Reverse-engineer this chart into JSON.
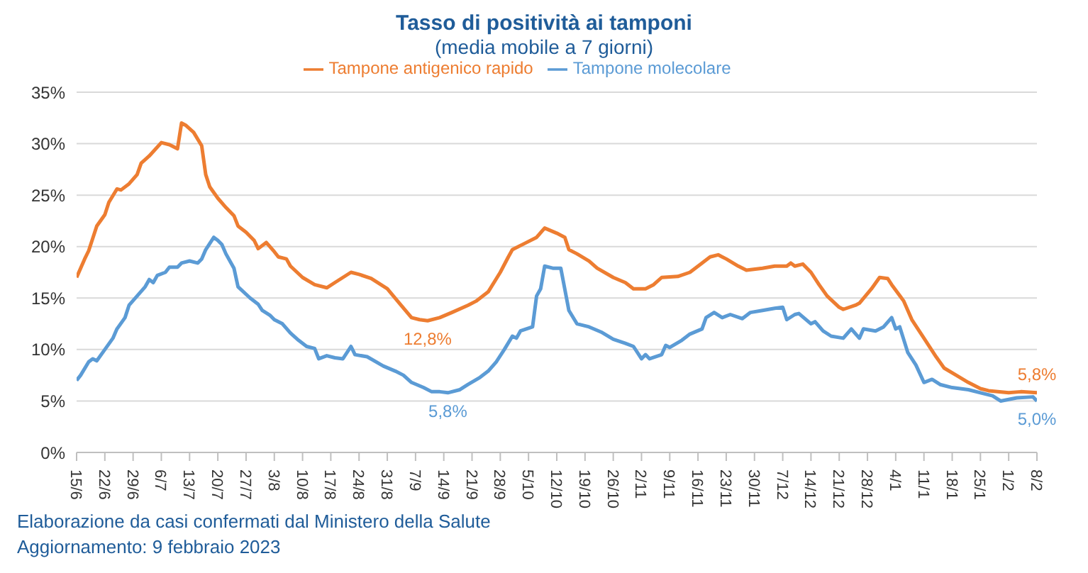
{
  "chart_data": {
    "type": "line",
    "title": "Tasso di positività ai tamponi",
    "subtitle": "(media mobile a 7 giorni)",
    "annotations": [
      "Elaborazione da casi confermati dal Ministero della Salute",
      "Aggiornamento: 9 febbraio 2023"
    ],
    "xlim": [
      "2022-06-15",
      "2023-02-08"
    ],
    "xticks": [
      {
        "value": "2022-06-15",
        "label": "15/6"
      },
      {
        "value": "2022-06-22",
        "label": "22/6"
      },
      {
        "value": "2022-06-29",
        "label": "29/6"
      },
      {
        "value": "2022-07-06",
        "label": "6/7"
      },
      {
        "value": "2022-07-13",
        "label": "13/7"
      },
      {
        "value": "2022-07-20",
        "label": "20/7"
      },
      {
        "value": "2022-07-27",
        "label": "27/7"
      },
      {
        "value": "2022-08-03",
        "label": "3/8"
      },
      {
        "value": "2022-08-10",
        "label": "10/8"
      },
      {
        "value": "2022-08-17",
        "label": "17/8"
      },
      {
        "value": "2022-08-24",
        "label": "24/8"
      },
      {
        "value": "2022-08-31",
        "label": "31/8"
      },
      {
        "value": "2022-09-07",
        "label": "7/9"
      },
      {
        "value": "2022-09-14",
        "label": "14/9"
      },
      {
        "value": "2022-09-21",
        "label": "21/9"
      },
      {
        "value": "2022-09-28",
        "label": "28/9"
      },
      {
        "value": "2022-10-05",
        "label": "5/10"
      },
      {
        "value": "2022-10-12",
        "label": "12/10"
      },
      {
        "value": "2022-10-19",
        "label": "19/10"
      },
      {
        "value": "2022-10-26",
        "label": "26/10"
      },
      {
        "value": "2022-11-02",
        "label": "2/11"
      },
      {
        "value": "2022-11-09",
        "label": "9/11"
      },
      {
        "value": "2022-11-16",
        "label": "16/11"
      },
      {
        "value": "2022-11-23",
        "label": "23/11"
      },
      {
        "value": "2022-11-30",
        "label": "30/11"
      },
      {
        "value": "2022-12-07",
        "label": "7/12"
      },
      {
        "value": "2022-12-14",
        "label": "14/12"
      },
      {
        "value": "2022-12-21",
        "label": "21/12"
      },
      {
        "value": "2022-12-28",
        "label": "28/12"
      },
      {
        "value": "2023-01-04",
        "label": "4/1"
      },
      {
        "value": "2023-01-11",
        "label": "11/1"
      },
      {
        "value": "2023-01-18",
        "label": "18/1"
      },
      {
        "value": "2023-01-25",
        "label": "25/1"
      },
      {
        "value": "2023-02-01",
        "label": "1/2"
      },
      {
        "value": "2023-02-08",
        "label": "8/2"
      }
    ],
    "ylim": [
      0,
      35
    ],
    "yticks": [
      {
        "value": 0,
        "label": "0%"
      },
      {
        "value": 5,
        "label": "5%"
      },
      {
        "value": 10,
        "label": "10%"
      },
      {
        "value": 15,
        "label": "15%"
      },
      {
        "value": 20,
        "label": "20%"
      },
      {
        "value": 25,
        "label": "25%"
      },
      {
        "value": 30,
        "label": "30%"
      },
      {
        "value": 35,
        "label": "35%"
      }
    ],
    "grid": "y",
    "legend": "top",
    "series": [
      {
        "name": "Tampone molecolare",
        "color": "#5b9bd5",
        "x": [
          "2022-06-15",
          "2022-06-16",
          "2022-06-18",
          "2022-06-19",
          "2022-06-20",
          "2022-06-22",
          "2022-06-24",
          "2022-06-25",
          "2022-06-27",
          "2022-06-28",
          "2022-06-30",
          "2022-07-02",
          "2022-07-03",
          "2022-07-04",
          "2022-07-05",
          "2022-07-07",
          "2022-07-08",
          "2022-07-10",
          "2022-07-11",
          "2022-07-13",
          "2022-07-15",
          "2022-07-16",
          "2022-07-17",
          "2022-07-19",
          "2022-07-20",
          "2022-07-21",
          "2022-07-22",
          "2022-07-24",
          "2022-07-25",
          "2022-07-28",
          "2022-07-30",
          "2022-07-31",
          "2022-08-02",
          "2022-08-03",
          "2022-08-05",
          "2022-08-07",
          "2022-08-09",
          "2022-08-11",
          "2022-08-13",
          "2022-08-14",
          "2022-08-16",
          "2022-08-18",
          "2022-08-20",
          "2022-08-22",
          "2022-08-23",
          "2022-08-26",
          "2022-08-30",
          "2022-09-02",
          "2022-09-04",
          "2022-09-06",
          "2022-09-09",
          "2022-09-11",
          "2022-09-13",
          "2022-09-15",
          "2022-09-18",
          "2022-09-20",
          "2022-09-23",
          "2022-09-25",
          "2022-09-27",
          "2022-09-29",
          "2022-10-01",
          "2022-10-02",
          "2022-10-03",
          "2022-10-06",
          "2022-10-07",
          "2022-10-08",
          "2022-10-09",
          "2022-10-11",
          "2022-10-13",
          "2022-10-15",
          "2022-10-17",
          "2022-10-20",
          "2022-10-23",
          "2022-10-26",
          "2022-10-29",
          "2022-10-31",
          "2022-11-02",
          "2022-11-03",
          "2022-11-04",
          "2022-11-07",
          "2022-11-08",
          "2022-11-09",
          "2022-11-12",
          "2022-11-14",
          "2022-11-17",
          "2022-11-18",
          "2022-11-20",
          "2022-11-22",
          "2022-11-24",
          "2022-11-27",
          "2022-11-29",
          "2022-12-02",
          "2022-12-05",
          "2022-12-07",
          "2022-12-08",
          "2022-12-10",
          "2022-12-11",
          "2022-12-14",
          "2022-12-15",
          "2022-12-17",
          "2022-12-19",
          "2022-12-22",
          "2022-12-24",
          "2022-12-26",
          "2022-12-27",
          "2022-12-30",
          "2023-01-01",
          "2023-01-03",
          "2023-01-04",
          "2023-01-05",
          "2023-01-07",
          "2023-01-09",
          "2023-01-11",
          "2023-01-13",
          "2023-01-15",
          "2023-01-18",
          "2023-01-20",
          "2023-01-22",
          "2023-01-25",
          "2023-01-28",
          "2023-01-30",
          "2023-02-03",
          "2023-02-07",
          "2023-02-08"
        ],
        "values": [
          7.0,
          7.5,
          8.8,
          9.1,
          8.9,
          10.0,
          11.1,
          12.0,
          13.1,
          14.3,
          15.2,
          16.1,
          16.8,
          16.5,
          17.2,
          17.5,
          18.0,
          18.0,
          18.4,
          18.6,
          18.4,
          18.8,
          19.7,
          20.9,
          20.6,
          20.2,
          19.3,
          17.9,
          16.1,
          15.0,
          14.4,
          13.8,
          13.3,
          12.9,
          12.5,
          11.6,
          10.9,
          10.3,
          10.1,
          9.1,
          9.4,
          9.2,
          9.1,
          10.3,
          9.5,
          9.3,
          8.4,
          7.9,
          7.5,
          6.8,
          6.3,
          5.9,
          5.9,
          5.8,
          6.1,
          6.6,
          7.3,
          7.9,
          8.8,
          10.0,
          11.3,
          11.1,
          11.8,
          12.2,
          15.2,
          15.9,
          18.1,
          17.9,
          17.9,
          13.8,
          12.5,
          12.2,
          11.7,
          11.0,
          10.6,
          10.3,
          9.1,
          9.5,
          9.1,
          9.5,
          10.4,
          10.2,
          10.9,
          11.5,
          12.0,
          13.1,
          13.6,
          13.1,
          13.4,
          13.0,
          13.6,
          13.8,
          14.0,
          14.1,
          12.9,
          13.4,
          13.5,
          12.5,
          12.7,
          11.8,
          11.3,
          11.1,
          12.0,
          11.1,
          12.0,
          11.8,
          12.2,
          13.1,
          12.0,
          12.2,
          9.7,
          8.5,
          6.8,
          7.1,
          6.6,
          6.3,
          6.2,
          6.1,
          5.8,
          5.5,
          5.0,
          5.3,
          5.4,
          5.0
        ],
        "value_labels": [
          null,
          null,
          null,
          null,
          null,
          null,
          null,
          null,
          null,
          null,
          null,
          null,
          null,
          null,
          null,
          null,
          null,
          null,
          null,
          null,
          null,
          null,
          null,
          null,
          null,
          null,
          null,
          null,
          null,
          null,
          null,
          null,
          null,
          null,
          null,
          null,
          null,
          null,
          null,
          null,
          null,
          null,
          null,
          null,
          null,
          null,
          null,
          null,
          null,
          null,
          null,
          null,
          null,
          "5,8%",
          null,
          null,
          null,
          null,
          null,
          null,
          null,
          null,
          null,
          null,
          null,
          null,
          null,
          null,
          null,
          null,
          null,
          null,
          null,
          null,
          null,
          null,
          null,
          null,
          null,
          null,
          null,
          null,
          null,
          null,
          null,
          null,
          null,
          null,
          null,
          null,
          null,
          null,
          null,
          null,
          null,
          null,
          null,
          null,
          null,
          null,
          null,
          null,
          null,
          null,
          null,
          null,
          null,
          null,
          null,
          null,
          null,
          null,
          null,
          null,
          null,
          null,
          null,
          null,
          null,
          null,
          null,
          null,
          null,
          "5,0%"
        ]
      },
      {
        "name": "Tampone antigenico rapido",
        "color": "#ed7d31",
        "x": [
          "2022-06-15",
          "2022-06-17",
          "2022-06-18",
          "2022-06-20",
          "2022-06-22",
          "2022-06-23",
          "2022-06-25",
          "2022-06-26",
          "2022-06-28",
          "2022-06-30",
          "2022-07-01",
          "2022-07-03",
          "2022-07-06",
          "2022-07-08",
          "2022-07-10",
          "2022-07-11",
          "2022-07-12",
          "2022-07-14",
          "2022-07-16",
          "2022-07-17",
          "2022-07-18",
          "2022-07-20",
          "2022-07-22",
          "2022-07-24",
          "2022-07-25",
          "2022-07-27",
          "2022-07-29",
          "2022-07-30",
          "2022-08-01",
          "2022-08-03",
          "2022-08-04",
          "2022-08-06",
          "2022-08-07",
          "2022-08-10",
          "2022-08-13",
          "2022-08-16",
          "2022-08-18",
          "2022-08-20",
          "2022-08-22",
          "2022-08-24",
          "2022-08-27",
          "2022-08-31",
          "2022-09-03",
          "2022-09-06",
          "2022-09-08",
          "2022-09-10",
          "2022-09-13",
          "2022-09-16",
          "2022-09-20",
          "2022-09-22",
          "2022-09-25",
          "2022-09-28",
          "2022-09-30",
          "2022-10-01",
          "2022-10-04",
          "2022-10-07",
          "2022-10-09",
          "2022-10-12",
          "2022-10-14",
          "2022-10-15",
          "2022-10-17",
          "2022-10-20",
          "2022-10-22",
          "2022-10-26",
          "2022-10-29",
          "2022-10-31",
          "2022-11-03",
          "2022-11-05",
          "2022-11-07",
          "2022-11-11",
          "2022-11-14",
          "2022-11-17",
          "2022-11-19",
          "2022-11-21",
          "2022-11-23",
          "2022-11-26",
          "2022-11-28",
          "2022-12-02",
          "2022-12-05",
          "2022-12-08",
          "2022-12-09",
          "2022-12-10",
          "2022-12-12",
          "2022-12-14",
          "2022-12-16",
          "2022-12-18",
          "2022-12-21",
          "2022-12-22",
          "2022-12-25",
          "2022-12-26",
          "2022-12-29",
          "2022-12-31",
          "2023-01-02",
          "2023-01-03",
          "2023-01-06",
          "2023-01-08",
          "2023-01-11",
          "2023-01-14",
          "2023-01-16",
          "2023-01-19",
          "2023-01-22",
          "2023-01-25",
          "2023-01-27",
          "2023-02-01",
          "2023-02-04",
          "2023-02-08"
        ],
        "values": [
          17.0,
          18.8,
          19.6,
          22.0,
          23.1,
          24.3,
          25.6,
          25.5,
          26.1,
          27.0,
          28.1,
          28.8,
          30.1,
          29.9,
          29.5,
          32.0,
          31.8,
          31.1,
          29.8,
          27.0,
          25.8,
          24.7,
          23.8,
          23.0,
          22.0,
          21.4,
          20.6,
          19.8,
          20.4,
          19.5,
          19.0,
          18.8,
          18.1,
          17.0,
          16.3,
          16.0,
          16.5,
          17.0,
          17.5,
          17.3,
          16.9,
          15.9,
          14.5,
          13.1,
          12.9,
          12.8,
          13.1,
          13.6,
          14.3,
          14.7,
          15.6,
          17.5,
          19.0,
          19.7,
          20.3,
          20.9,
          21.8,
          21.3,
          20.9,
          19.7,
          19.3,
          18.6,
          17.9,
          17.0,
          16.5,
          15.9,
          15.9,
          16.3,
          17.0,
          17.1,
          17.5,
          18.4,
          19.0,
          19.2,
          18.8,
          18.1,
          17.7,
          17.9,
          18.1,
          18.1,
          18.4,
          18.1,
          18.3,
          17.5,
          16.3,
          15.2,
          14.1,
          13.9,
          14.3,
          14.5,
          15.9,
          17.0,
          16.9,
          16.3,
          14.7,
          12.9,
          11.1,
          9.3,
          8.2,
          7.5,
          6.8,
          6.2,
          6.0,
          5.8,
          5.9,
          5.8
        ],
        "value_labels": [
          null,
          null,
          null,
          null,
          null,
          null,
          null,
          null,
          null,
          null,
          null,
          null,
          null,
          null,
          null,
          null,
          null,
          null,
          null,
          null,
          null,
          null,
          null,
          null,
          null,
          null,
          null,
          null,
          null,
          null,
          null,
          null,
          null,
          null,
          null,
          null,
          null,
          null,
          null,
          null,
          null,
          null,
          null,
          null,
          null,
          "12,8%",
          null,
          null,
          null,
          null,
          null,
          null,
          null,
          null,
          null,
          null,
          null,
          null,
          null,
          null,
          null,
          null,
          null,
          null,
          null,
          null,
          null,
          null,
          null,
          null,
          null,
          null,
          null,
          null,
          null,
          null,
          null,
          null,
          null,
          null,
          null,
          null,
          null,
          null,
          null,
          null,
          null,
          null,
          null,
          null,
          null,
          null,
          null,
          null,
          null,
          null,
          null,
          null,
          null,
          null,
          null,
          null,
          null,
          null,
          null,
          "5,8%"
        ]
      }
    ]
  }
}
